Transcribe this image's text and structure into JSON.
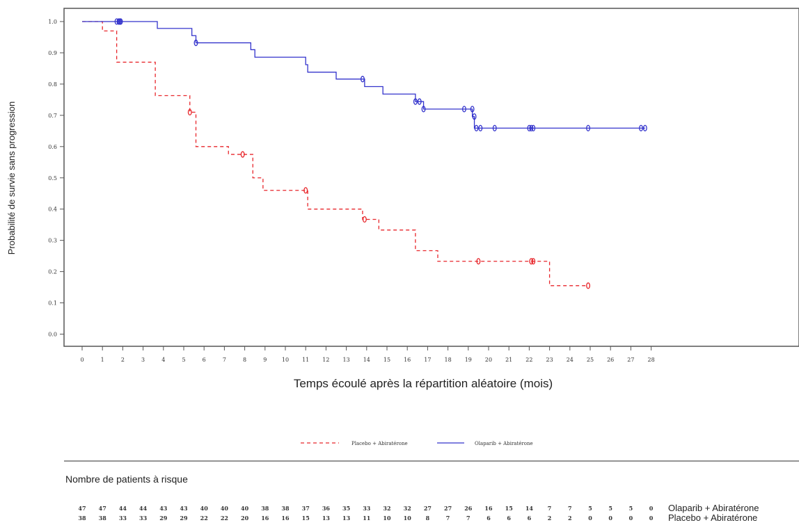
{
  "chart_data": {
    "type": "line",
    "title": "",
    "ylabel": "Probabilité de survie sans progression",
    "xlabel": "Temps écoulé après la répartition aléatoire (mois)",
    "xlim": [
      0,
      28
    ],
    "ylim": [
      0,
      1.0
    ],
    "x_ticks": [
      0,
      1,
      2,
      3,
      4,
      5,
      6,
      7,
      8,
      9,
      10,
      11,
      12,
      13,
      14,
      15,
      16,
      17,
      18,
      19,
      20,
      21,
      22,
      23,
      24,
      25,
      26,
      27,
      28
    ],
    "y_ticks": [
      0.0,
      0.1,
      0.2,
      0.3,
      0.4,
      0.5,
      0.6,
      0.7,
      0.8,
      0.9,
      1.0
    ],
    "y_tick_labels": [
      "0.0",
      "0.1",
      "0.2",
      "0.3",
      "0.4",
      "0.5",
      "0.6",
      "0.7",
      "0.8",
      "0.9",
      "1.0"
    ],
    "grid": false,
    "legend_position": "bottom",
    "series": [
      {
        "name": "Placebo + Abiratérone",
        "color": "#e8262b",
        "style": "dashed",
        "steps": [
          [
            0,
            1.0
          ],
          [
            1.0,
            0.97
          ],
          [
            1.7,
            0.87
          ],
          [
            3.6,
            0.763
          ],
          [
            5.3,
            0.71
          ],
          [
            5.6,
            0.6
          ],
          [
            7.2,
            0.575
          ],
          [
            8.4,
            0.5
          ],
          [
            8.9,
            0.46
          ],
          [
            11.1,
            0.4
          ],
          [
            13.8,
            0.367
          ],
          [
            14.6,
            0.333
          ],
          [
            16.4,
            0.267
          ],
          [
            17.5,
            0.233
          ],
          [
            23.0,
            0.155
          ],
          [
            24.9,
            0.155
          ]
        ],
        "censored": [
          [
            5.3,
            0.71
          ],
          [
            7.9,
            0.575
          ],
          [
            11.0,
            0.46
          ],
          [
            13.9,
            0.367
          ],
          [
            19.5,
            0.233
          ],
          [
            22.1,
            0.233
          ],
          [
            22.2,
            0.233
          ],
          [
            24.9,
            0.155
          ]
        ]
      },
      {
        "name": "Olaparib + Abiratérone",
        "color": "#3333cc",
        "style": "solid",
        "steps": [
          [
            0,
            1.0
          ],
          [
            3.7,
            0.978
          ],
          [
            5.4,
            0.955
          ],
          [
            5.6,
            0.932
          ],
          [
            8.3,
            0.91
          ],
          [
            8.5,
            0.886
          ],
          [
            11.0,
            0.862
          ],
          [
            11.1,
            0.838
          ],
          [
            12.5,
            0.816
          ],
          [
            13.9,
            0.792
          ],
          [
            14.8,
            0.768
          ],
          [
            16.4,
            0.744
          ],
          [
            16.8,
            0.72
          ],
          [
            19.2,
            0.696
          ],
          [
            19.3,
            0.659
          ],
          [
            27.7,
            0.659
          ]
        ],
        "censored": [
          [
            1.7,
            1.0
          ],
          [
            1.8,
            1.0
          ],
          [
            1.85,
            1.0
          ],
          [
            1.9,
            1.0
          ],
          [
            5.6,
            0.932
          ],
          [
            13.8,
            0.816
          ],
          [
            16.4,
            0.744
          ],
          [
            16.6,
            0.744
          ],
          [
            16.8,
            0.72
          ],
          [
            18.8,
            0.72
          ],
          [
            19.2,
            0.72
          ],
          [
            19.3,
            0.696
          ],
          [
            19.4,
            0.659
          ],
          [
            19.6,
            0.659
          ],
          [
            20.3,
            0.659
          ],
          [
            22.0,
            0.659
          ],
          [
            22.1,
            0.659
          ],
          [
            22.2,
            0.659
          ],
          [
            24.9,
            0.659
          ],
          [
            27.5,
            0.659
          ],
          [
            27.7,
            0.659
          ]
        ]
      }
    ],
    "risk_table_title": "Nombre de patients à risque",
    "risk_table": [
      {
        "name": "Olaparib + Abiratérone",
        "values": [
          47,
          47,
          44,
          44,
          43,
          43,
          40,
          40,
          40,
          38,
          38,
          37,
          36,
          35,
          33,
          32,
          32,
          27,
          27,
          26,
          16,
          15,
          14,
          7,
          7,
          5,
          5,
          5,
          0
        ]
      },
      {
        "name": "Placebo + Abiratérone",
        "values": [
          38,
          38,
          33,
          33,
          29,
          29,
          22,
          22,
          20,
          16,
          16,
          15,
          13,
          13,
          11,
          10,
          10,
          8,
          7,
          7,
          6,
          6,
          6,
          2,
          2,
          0,
          0,
          0,
          0
        ]
      }
    ]
  }
}
